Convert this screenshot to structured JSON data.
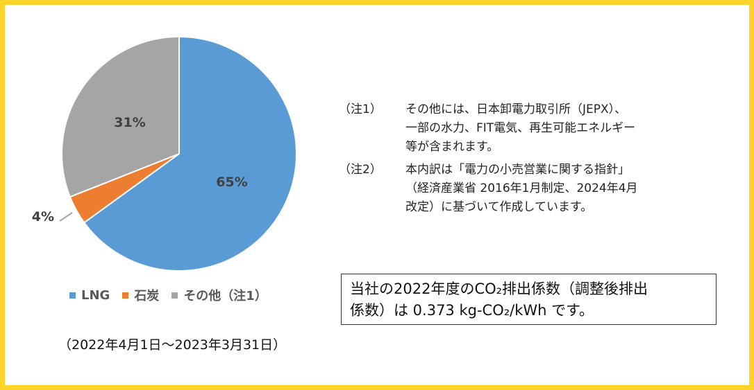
{
  "chart_data": {
    "type": "pie",
    "categories": [
      "LNG",
      "石炭",
      "その他（注1）"
    ],
    "values": [
      65,
      4,
      31
    ],
    "labels": [
      "65%",
      "4%",
      "31%"
    ],
    "colors": [
      "#5B9BD5",
      "#ED7D31",
      "#A5A5A5"
    ],
    "title": "",
    "legend_position": "bottom"
  },
  "legend": {
    "items": [
      {
        "label": "LNG",
        "color": "#5B9BD5"
      },
      {
        "label": "石炭",
        "color": "#ED7D31"
      },
      {
        "label": "その他（注1）",
        "color": "#A5A5A5"
      }
    ]
  },
  "period": "（2022年4月1日～2023年3月31日）",
  "notes": [
    {
      "tag": "（注1）",
      "lines": [
        "その他には、日本卸電力取引所（JEPX）、",
        "一部の水力、FIT電気、再生可能エネルギー",
        "等が含まれます。"
      ]
    },
    {
      "tag": "（注2）",
      "lines": [
        "本内訳は「電力の小売営業に関する指針」",
        "（経済産業省 2016年1月制定、2024年4月",
        "改定）に基づいて作成しています。"
      ]
    }
  ],
  "co2_box": {
    "line1": "当社の2022年度のCO₂排出係数（調整後排出",
    "line2": "係数）は 0.373 kg-CO₂/kWh です。"
  },
  "theme": {
    "frame_color": "#FFD42A"
  }
}
